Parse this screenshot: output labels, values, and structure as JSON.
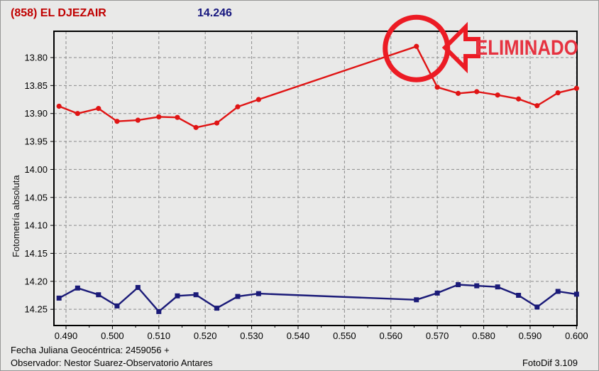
{
  "header": {
    "object_label": "(858) EL DJEZAIR",
    "magnitude_value": "14.246"
  },
  "footer": {
    "line1": "Fecha Juliana Geocéntrica: 2459056 +",
    "line2": "Observador: Nestor Suarez-Observatorio Antares",
    "app_version": "FotoDif 3.109"
  },
  "colors": {
    "title_red": "#c00000",
    "value_navy": "#16167e",
    "red_series": "#e01414",
    "blue_series": "#1a1a78",
    "annotation_red": "#ec1b24",
    "annotation_text": "#e63240",
    "grid": "#8c8c8c",
    "frame": "#000000",
    "background": "#e9e9e8"
  },
  "chart_data": {
    "type": "line",
    "title": "(858) EL DJEZAIR",
    "xlabel": "",
    "ylabel": "Fotometría absoluta",
    "grid": true,
    "legend_position": "none",
    "y_axis_inverted": true,
    "xlim": [
      0.4874,
      0.6001
    ],
    "ylim": [
      13.753,
      14.279
    ],
    "x_tick_labels": [
      "0.490",
      "0.500",
      "0.510",
      "0.520",
      "0.530",
      "0.540",
      "0.550",
      "0.560",
      "0.570",
      "0.580",
      "0.590",
      "0.600"
    ],
    "y_tick_labels": [
      "13.80",
      "13.85",
      "13.90",
      "13.95",
      "14.00",
      "14.05",
      "14.10",
      "14.15",
      "14.20",
      "14.25"
    ],
    "x": [
      0.4885,
      0.4925,
      0.497,
      0.501,
      0.5055,
      0.51,
      0.514,
      0.518,
      0.5225,
      0.527,
      0.5315,
      0.5655,
      0.57,
      0.5745,
      0.5785,
      0.583,
      0.5875,
      0.5915,
      0.596,
      0.6
    ],
    "series": [
      {
        "name": "blue-series",
        "color": "#1a1a78",
        "marker": "square",
        "values": [
          14.23,
          14.212,
          14.224,
          14.244,
          14.211,
          14.254,
          14.226,
          14.224,
          14.248,
          14.227,
          14.222,
          14.233,
          14.221,
          14.206,
          14.208,
          14.21,
          14.225,
          14.246,
          14.218,
          14.223
        ]
      },
      {
        "name": "red-series",
        "color": "#e01414",
        "marker": "circle",
        "values": [
          13.887,
          13.9,
          13.891,
          13.914,
          13.912,
          13.906,
          13.907,
          13.925,
          13.917,
          13.888,
          13.875,
          13.78,
          13.853,
          13.864,
          13.861,
          13.867,
          13.874,
          13.886,
          13.863,
          13.855
        ]
      }
    ],
    "annotation": {
      "label": "ELIMINADO",
      "point_x": 0.5655,
      "point_y": 13.78,
      "color": "#ec1b24"
    }
  }
}
